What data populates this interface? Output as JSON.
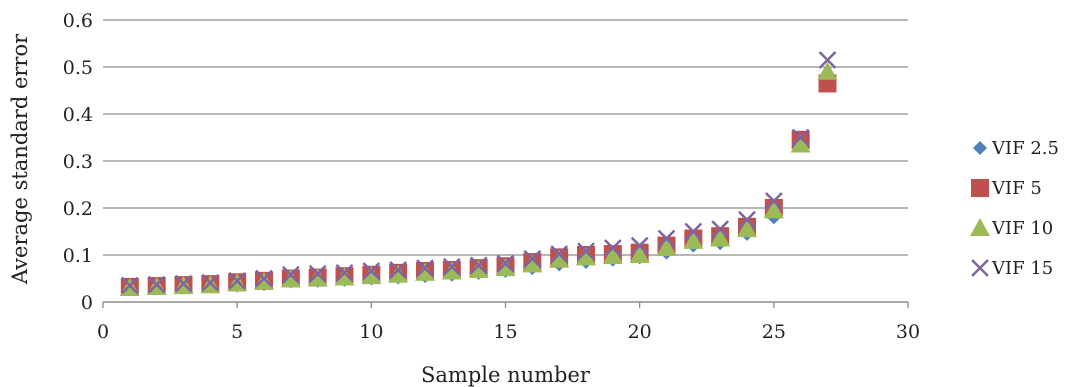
{
  "chart_data": {
    "type": "scatter",
    "xlabel": "Sample number",
    "ylabel": "Average standard error",
    "xlim": [
      0,
      30
    ],
    "ylim": [
      0,
      0.6
    ],
    "x_ticks": [
      "0",
      "5",
      "10",
      "15",
      "20",
      "25",
      "30"
    ],
    "y_ticks": [
      "0",
      "0.1",
      "0.2",
      "0.3",
      "0.4",
      "0.5",
      "0.6"
    ],
    "grid": "horizontal",
    "legend_position": "right",
    "x": [
      1,
      2,
      3,
      4,
      5,
      6,
      7,
      8,
      9,
      10,
      11,
      12,
      13,
      14,
      15,
      16,
      17,
      18,
      19,
      20,
      21,
      22,
      23,
      24,
      25,
      26,
      27
    ],
    "series": [
      {
        "name": "VIF 2.5",
        "marker": "diamond",
        "color": "#4F81BD",
        "values": [
          0.027,
          0.029,
          0.031,
          0.033,
          0.035,
          0.038,
          0.044,
          0.045,
          0.047,
          0.05,
          0.052,
          0.055,
          0.058,
          0.062,
          0.066,
          0.072,
          0.08,
          0.085,
          0.09,
          0.095,
          0.105,
          0.12,
          0.125,
          0.145,
          0.18,
          0.34,
          0.47
        ]
      },
      {
        "name": "VIF 5",
        "marker": "square",
        "color": "#C0504D",
        "values": [
          0.032,
          0.034,
          0.036,
          0.038,
          0.042,
          0.045,
          0.05,
          0.052,
          0.055,
          0.058,
          0.062,
          0.066,
          0.068,
          0.072,
          0.076,
          0.085,
          0.095,
          0.1,
          0.102,
          0.105,
          0.12,
          0.135,
          0.14,
          0.16,
          0.2,
          0.345,
          0.465
        ]
      },
      {
        "name": "VIF 10",
        "marker": "triangle",
        "color": "#9BBB59",
        "values": [
          0.03,
          0.032,
          0.034,
          0.036,
          0.04,
          0.043,
          0.048,
          0.05,
          0.052,
          0.055,
          0.058,
          0.062,
          0.065,
          0.068,
          0.072,
          0.08,
          0.09,
          0.095,
          0.098,
          0.1,
          0.115,
          0.13,
          0.135,
          0.155,
          0.195,
          0.335,
          0.49
        ]
      },
      {
        "name": "VIF 15",
        "marker": "x",
        "color": "#8064A2",
        "values": [
          0.035,
          0.037,
          0.039,
          0.041,
          0.045,
          0.05,
          0.058,
          0.06,
          0.062,
          0.066,
          0.068,
          0.072,
          0.075,
          0.078,
          0.082,
          0.092,
          0.102,
          0.108,
          0.115,
          0.12,
          0.135,
          0.15,
          0.155,
          0.175,
          0.215,
          0.35,
          0.515
        ]
      }
    ]
  }
}
